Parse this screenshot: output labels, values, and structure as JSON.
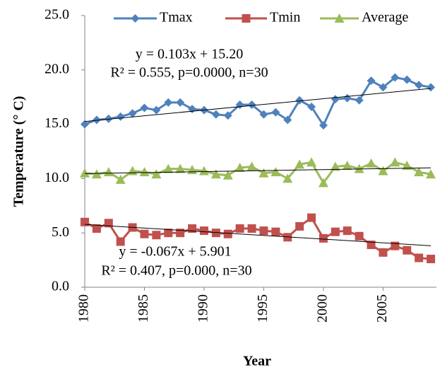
{
  "chart_data": {
    "type": "line",
    "x": [
      1980,
      1981,
      1982,
      1983,
      1984,
      1985,
      1986,
      1987,
      1988,
      1989,
      1990,
      1991,
      1992,
      1993,
      1994,
      1995,
      1996,
      1997,
      1998,
      1999,
      2000,
      2001,
      2002,
      2003,
      2004,
      2005,
      2006,
      2007,
      2008,
      2009
    ],
    "xlim": [
      1980,
      2009
    ],
    "xticks": [
      1980,
      1985,
      1990,
      1995,
      2000,
      2005
    ],
    "ylim": [
      0,
      25
    ],
    "yticks": [
      {
        "value": 0,
        "label": "0.0"
      },
      {
        "value": 5,
        "label": "5.0"
      },
      {
        "value": 10,
        "label": "10.0"
      },
      {
        "value": 15,
        "label": "15.0"
      },
      {
        "value": 20,
        "label": "20.0"
      },
      {
        "value": 25,
        "label": "25.0"
      }
    ],
    "xlabel": "Year",
    "ylabel": "Temperature (° C)",
    "grid": false,
    "legend": "top",
    "series": [
      {
        "name": "Tmax",
        "color": "#4f81bd",
        "marker": "diamond",
        "values": [
          15.0,
          15.4,
          15.5,
          15.7,
          16.0,
          16.5,
          16.3,
          17.0,
          17.0,
          16.4,
          16.3,
          15.9,
          15.8,
          16.8,
          16.8,
          15.9,
          16.1,
          15.4,
          17.2,
          16.6,
          14.9,
          17.3,
          17.4,
          17.2,
          19.0,
          18.4,
          19.3,
          19.1,
          18.6,
          18.4
        ]
      },
      {
        "name": "Tmin",
        "color": "#c0504d",
        "marker": "square",
        "values": [
          6.0,
          5.4,
          5.9,
          4.2,
          5.5,
          4.9,
          4.8,
          5.0,
          5.0,
          5.4,
          5.2,
          5.0,
          4.9,
          5.4,
          5.4,
          5.2,
          5.1,
          4.6,
          5.6,
          6.4,
          4.5,
          5.1,
          5.2,
          4.7,
          3.9,
          3.2,
          3.8,
          3.4,
          2.7,
          2.6
        ]
      },
      {
        "name": "Average",
        "color": "#9bbb59",
        "marker": "triangle",
        "values": [
          10.5,
          10.4,
          10.6,
          9.9,
          10.7,
          10.6,
          10.4,
          10.9,
          10.9,
          10.8,
          10.7,
          10.4,
          10.3,
          11.0,
          11.1,
          10.5,
          10.6,
          10.0,
          11.3,
          11.5,
          9.6,
          11.1,
          11.2,
          10.9,
          11.4,
          10.7,
          11.5,
          11.2,
          10.6,
          10.4
        ]
      }
    ],
    "trendlines": [
      0,
      1,
      2
    ],
    "annotations": [
      {
        "text": "y = 0.103x + 15.20"
      },
      {
        "text": "R² = 0.555, p=0.0000, n=30"
      },
      {
        "text": "y = -0.067x + 5.901"
      },
      {
        "text": "R² = 0.407, p=0.000, n=30"
      }
    ]
  }
}
